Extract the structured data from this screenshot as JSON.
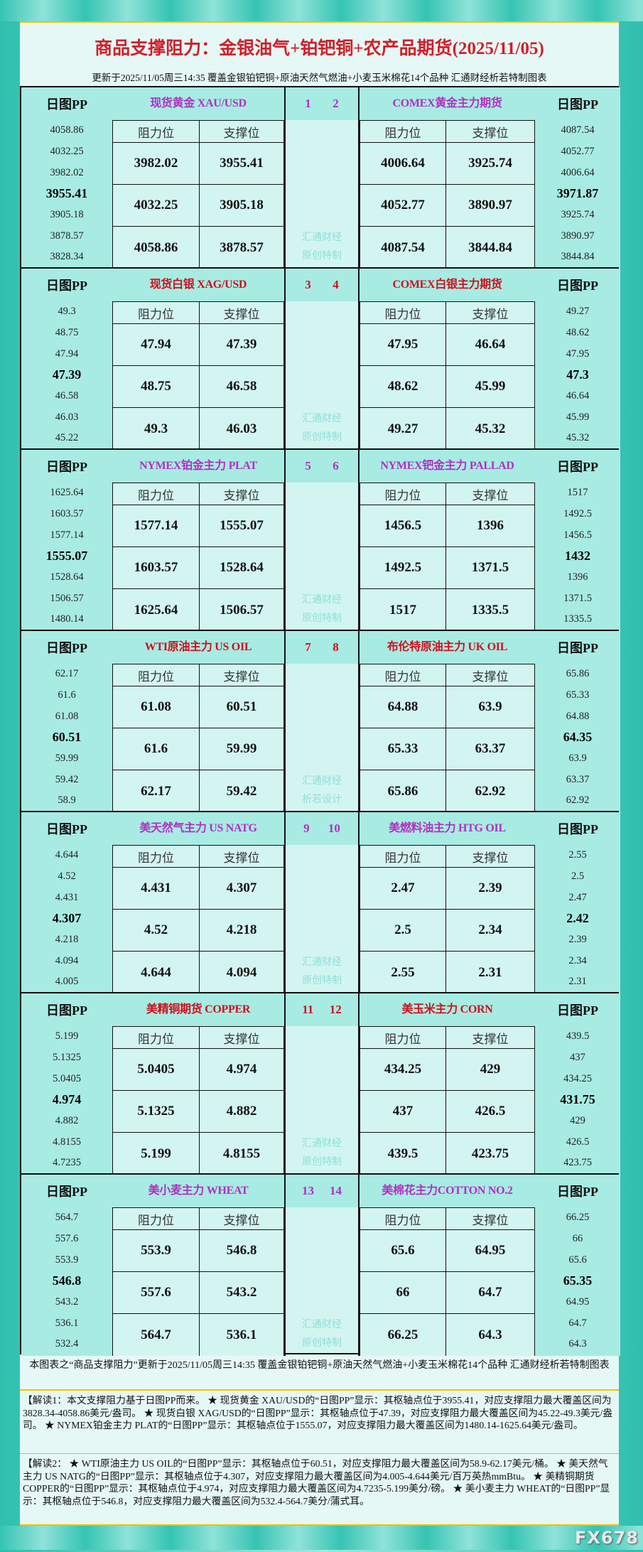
{
  "title": "商品支撑阻力：金银油气+铂钯铜+农产品期货(2025/11/05)",
  "subtitle": "更新于2025/11/05周三14:35  覆盖金银铂钯铜+原油天然气燃油+小麦玉米棉花14个品种  汇通财经析若特制图表",
  "labels": {
    "pp": "日图PP",
    "resistance": "阻力位",
    "support": "支撑位"
  },
  "colors": {
    "purple": "#b22fc4",
    "red": "#d0101c"
  },
  "blocks": [
    {
      "nums": [
        "1",
        "2"
      ],
      "color": "purple",
      "watermark": [
        "汇通财经",
        "原创特制"
      ],
      "left": {
        "name": "现货黄金 XAU/USD",
        "pp": [
          "4058.86",
          "4032.25",
          "3982.02",
          "3955.41",
          "3905.18",
          "3878.57",
          "3828.34"
        ],
        "rows": [
          [
            "3982.02",
            "3955.41"
          ],
          [
            "4032.25",
            "3905.18"
          ],
          [
            "4058.86",
            "3878.57"
          ]
        ]
      },
      "right": {
        "name": "COMEX黄金主力期货",
        "pp": [
          "4087.54",
          "4052.77",
          "4006.64",
          "3971.87",
          "3925.74",
          "3890.97",
          "3844.84"
        ],
        "rows": [
          [
            "4006.64",
            "3925.74"
          ],
          [
            "4052.77",
            "3890.97"
          ],
          [
            "4087.54",
            "3844.84"
          ]
        ]
      }
    },
    {
      "nums": [
        "3",
        "4"
      ],
      "color": "red",
      "watermark": [
        "汇通财经",
        "原创特制"
      ],
      "left": {
        "name": "现货白银 XAG/USD",
        "pp": [
          "49.3",
          "48.75",
          "47.94",
          "47.39",
          "46.58",
          "46.03",
          "45.22"
        ],
        "rows": [
          [
            "47.94",
            "47.39"
          ],
          [
            "48.75",
            "46.58"
          ],
          [
            "49.3",
            "46.03"
          ]
        ]
      },
      "right": {
        "name": "COMEX白银主力期货",
        "pp": [
          "49.27",
          "48.62",
          "47.95",
          "47.3",
          "46.64",
          "45.99",
          "45.32"
        ],
        "rows": [
          [
            "47.95",
            "46.64"
          ],
          [
            "48.62",
            "45.99"
          ],
          [
            "49.27",
            "45.32"
          ]
        ]
      }
    },
    {
      "nums": [
        "5",
        "6"
      ],
      "color": "purple",
      "watermark": [
        "汇通财经",
        "原创特制"
      ],
      "left": {
        "name": "NYMEX铂金主力 PLAT",
        "pp": [
          "1625.64",
          "1603.57",
          "1577.14",
          "1555.07",
          "1528.64",
          "1506.57",
          "1480.14"
        ],
        "rows": [
          [
            "1577.14",
            "1555.07"
          ],
          [
            "1603.57",
            "1528.64"
          ],
          [
            "1625.64",
            "1506.57"
          ]
        ]
      },
      "right": {
        "name": "NYMEX钯金主力 PALLAD",
        "pp": [
          "1517",
          "1492.5",
          "1456.5",
          "1432",
          "1396",
          "1371.5",
          "1335.5"
        ],
        "rows": [
          [
            "1456.5",
            "1396"
          ],
          [
            "1492.5",
            "1371.5"
          ],
          [
            "1517",
            "1335.5"
          ]
        ]
      }
    },
    {
      "nums": [
        "7",
        "8"
      ],
      "color": "red",
      "watermark": [
        "汇通财经",
        "析若设计"
      ],
      "left": {
        "name": "WTI原油主力 US OIL",
        "pp": [
          "62.17",
          "61.6",
          "61.08",
          "60.51",
          "59.99",
          "59.42",
          "58.9"
        ],
        "rows": [
          [
            "61.08",
            "60.51"
          ],
          [
            "61.6",
            "59.99"
          ],
          [
            "62.17",
            "59.42"
          ]
        ]
      },
      "right": {
        "name": "布伦特原油主力 UK OIL",
        "pp": [
          "65.86",
          "65.33",
          "64.88",
          "64.35",
          "63.9",
          "63.37",
          "62.92"
        ],
        "rows": [
          [
            "64.88",
            "63.9"
          ],
          [
            "65.33",
            "63.37"
          ],
          [
            "65.86",
            "62.92"
          ]
        ]
      }
    },
    {
      "nums": [
        "9",
        "10"
      ],
      "color": "purple",
      "watermark": [
        "汇通财经",
        "原创特制"
      ],
      "left": {
        "name": "美天然气主力 US NATG",
        "pp": [
          "4.644",
          "4.52",
          "4.431",
          "4.307",
          "4.218",
          "4.094",
          "4.005"
        ],
        "rows": [
          [
            "4.431",
            "4.307"
          ],
          [
            "4.52",
            "4.218"
          ],
          [
            "4.644",
            "4.094"
          ]
        ]
      },
      "right": {
        "name": "美燃料油主力 HTG OIL",
        "pp": [
          "2.55",
          "2.5",
          "2.47",
          "2.42",
          "2.39",
          "2.34",
          "2.31"
        ],
        "rows": [
          [
            "2.47",
            "2.39"
          ],
          [
            "2.5",
            "2.34"
          ],
          [
            "2.55",
            "2.31"
          ]
        ]
      }
    },
    {
      "nums": [
        "11",
        "12"
      ],
      "color": "red",
      "watermark": [
        "汇通财经",
        "原创特制"
      ],
      "left": {
        "name": "美精铜期货 COPPER",
        "pp": [
          "5.199",
          "5.1325",
          "5.0405",
          "4.974",
          "4.882",
          "4.8155",
          "4.7235"
        ],
        "rows": [
          [
            "5.0405",
            "4.974"
          ],
          [
            "5.1325",
            "4.882"
          ],
          [
            "5.199",
            "4.8155"
          ]
        ]
      },
      "right": {
        "name": "美玉米主力 CORN",
        "pp": [
          "439.5",
          "437",
          "434.25",
          "431.75",
          "429",
          "426.5",
          "423.75"
        ],
        "rows": [
          [
            "434.25",
            "429"
          ],
          [
            "437",
            "426.5"
          ],
          [
            "439.5",
            "423.75"
          ]
        ]
      }
    },
    {
      "nums": [
        "13",
        "14"
      ],
      "color": "purple",
      "watermark": [
        "汇通财经",
        "原创特制"
      ],
      "left": {
        "name": "美小麦主力 WHEAT",
        "pp": [
          "564.7",
          "557.6",
          "553.9",
          "546.8",
          "543.2",
          "536.1",
          "532.4"
        ],
        "rows": [
          [
            "553.9",
            "546.8"
          ],
          [
            "557.6",
            "543.2"
          ],
          [
            "564.7",
            "536.1"
          ]
        ]
      },
      "right": {
        "name": "美棉花主力COTTON NO.2",
        "pp": [
          "66.25",
          "66",
          "65.6",
          "65.35",
          "64.95",
          "64.7",
          "64.3"
        ],
        "rows": [
          [
            "65.6",
            "64.95"
          ],
          [
            "66",
            "64.7"
          ],
          [
            "66.25",
            "64.3"
          ]
        ]
      }
    }
  ],
  "footer_note": "本图表之“商品支撑阻力”更新于2025/11/05周三14:35  覆盖金银铂钯铜+原油天然气燃油+小麦玉米棉花14个品种  汇通财经析若特制图表",
  "interpretation1": "【解读1：本文支撑阻力基于日图PP而来。 ★ 现货黄金 XAU/USD的“日图PP”显示：其枢轴点位于3955.41，对应支撑阻力最大覆盖区间为3828.34-4058.86美元/盎司。 ★ 现货白银 XAG/USD的“日图PP”显示：其枢轴点位于47.39，对应支撑阻力最大覆盖区间为45.22-49.3美元/盎司。 ★ NYMEX铂金主力 PLAT的“日图PP”显示：其枢轴点位于1555.07，对应支撑阻力最大覆盖区间为1480.14-1625.64美元/盎司。",
  "interpretation2": "【解读2： ★ WTI原油主力 US OIL的“日图PP”显示：其枢轴点位于60.51，对应支撑阻力最大覆盖区间为58.9-62.17美元/桶。 ★ 美天然气主力 US NATG的“日图PP”显示：其枢轴点位于4.307，对应支撑阻力最大覆盖区间为4.005-4.644美元/百万英热mmBtu。 ★ 美精铜期货 COPPER的“日图PP”显示：其枢轴点位于4.974，对应支撑阻力最大覆盖区间为4.7235-5.199美分/磅。 ★ 美小麦主力 WHEAT的“日图PP”显示：其枢轴点位于546.8，对应支撑阻力最大覆盖区间为532.4-564.7美分/蒲式耳。",
  "logo": "FX678"
}
